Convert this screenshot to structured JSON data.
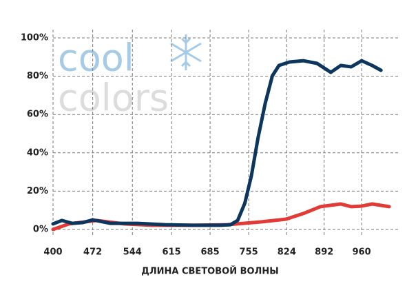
{
  "chart_data": {
    "type": "line",
    "logo_top": "cool",
    "logo_bottom": "colors",
    "x_label": "ДЛИНА СВЕТОВОЙ ВОЛНЫ",
    "xlim": [
      400,
      1026
    ],
    "xticks": [
      400,
      472,
      544,
      615,
      685,
      755,
      824,
      892,
      960
    ],
    "ylim": [
      0,
      100
    ],
    "yticks": [
      {
        "value": 0,
        "label": "0%"
      },
      {
        "value": 20,
        "label": "20%"
      },
      {
        "value": 40,
        "label": "40%"
      },
      {
        "value": 60,
        "label": "60%"
      },
      {
        "value": 80,
        "label": "80%"
      },
      {
        "value": 100,
        "label": "100%"
      }
    ],
    "grid": true,
    "series": [
      {
        "color": "#e23a36",
        "x": [
          400,
          429,
          479,
          529,
          579,
          654,
          716,
          779,
          823,
          854,
          885,
          922,
          941,
          960,
          979,
          1010
        ],
        "values": [
          0,
          2.9,
          4.7,
          2.9,
          2.2,
          2.2,
          2.5,
          4.0,
          5.4,
          8.3,
          11.9,
          13.3,
          11.9,
          12.2,
          13.3,
          11.9
        ]
      },
      {
        "color": "#0c365e",
        "x": [
          400,
          416,
          435,
          454,
          472,
          504,
          554,
          604,
          654,
          704,
          722,
          735,
          748,
          760,
          772,
          785,
          798,
          810,
          829,
          854,
          879,
          904,
          922,
          941,
          960,
          979,
          995
        ],
        "values": [
          2.9,
          4.7,
          3.2,
          3.6,
          5.0,
          3.2,
          3.2,
          2.5,
          2.2,
          2.2,
          2.5,
          4.7,
          13.7,
          28.1,
          47.8,
          65.8,
          80.2,
          85.6,
          87.4,
          88.1,
          86.7,
          82.0,
          85.6,
          84.9,
          88.1,
          85.6,
          83.1
        ]
      }
    ]
  }
}
